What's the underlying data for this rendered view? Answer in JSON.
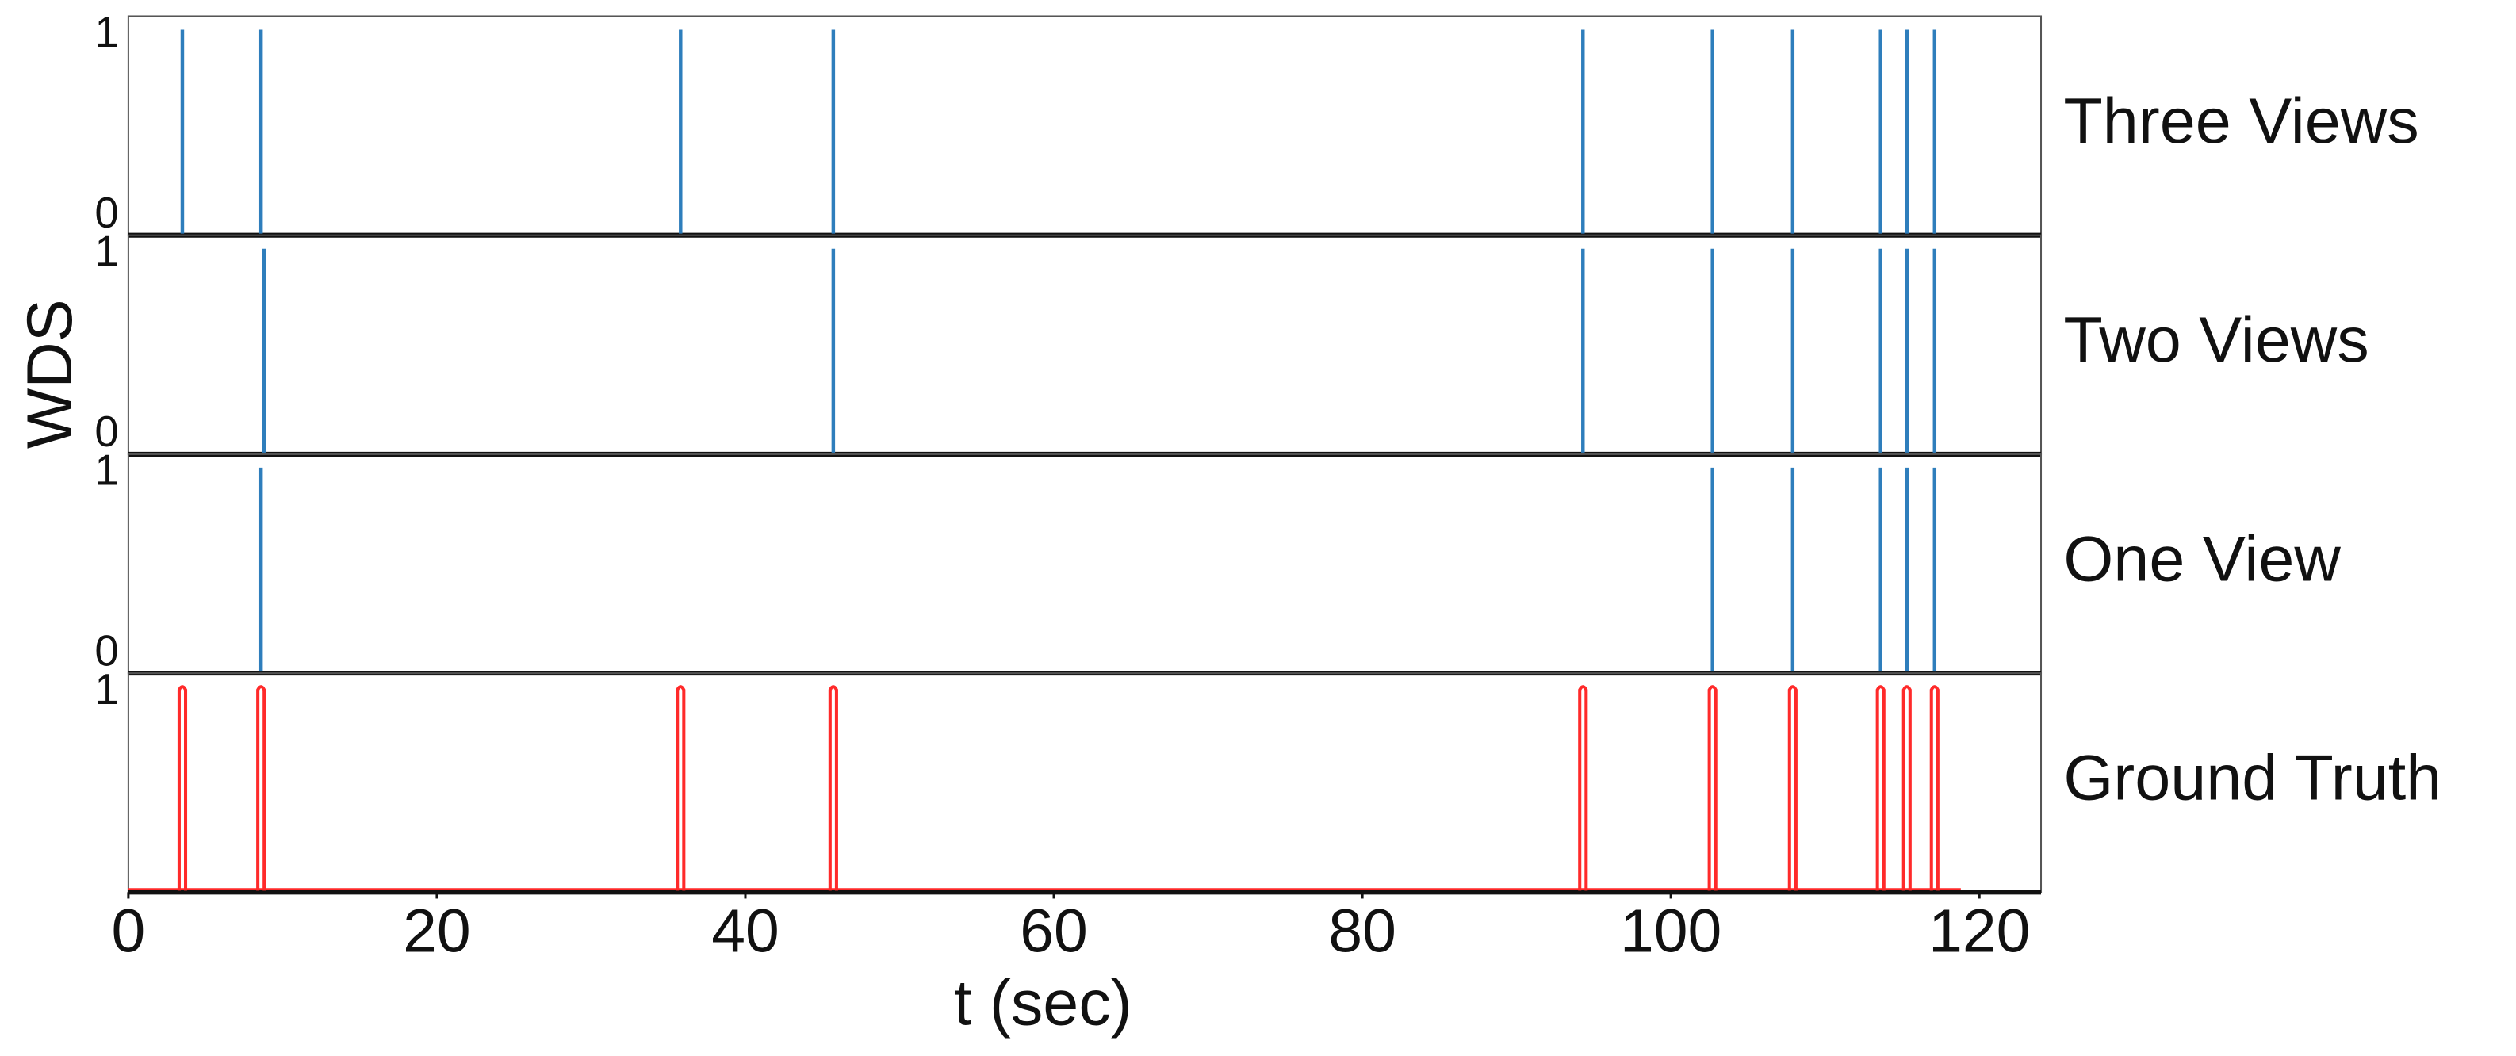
{
  "chart_data": [
    {
      "type": "spike",
      "title": "Three Views",
      "ylabel": "WDS",
      "color": "#2e7ebc",
      "x": [
        3.5,
        8.6,
        35.8,
        45.7,
        94.3,
        102.7,
        107.9,
        113.6,
        115.3,
        117.1
      ],
      "values": [
        1,
        1,
        1,
        1,
        1,
        1,
        1,
        1,
        1,
        1
      ],
      "xlim": [
        0,
        124
      ],
      "ylim": [
        0,
        1.05
      ],
      "yticks": [
        0,
        1
      ]
    },
    {
      "type": "spike",
      "title": "Two Views",
      "color": "#2e7ebc",
      "x": [
        8.8,
        45.7,
        94.3,
        102.7,
        107.9,
        113.6,
        115.3,
        117.1
      ],
      "values": [
        1,
        1,
        1,
        1,
        1,
        1,
        1,
        1
      ],
      "xlim": [
        0,
        124
      ],
      "ylim": [
        0,
        1.05
      ],
      "yticks": [
        0,
        1
      ]
    },
    {
      "type": "spike",
      "title": "One View",
      "color": "#2e7ebc",
      "x": [
        8.6,
        102.7,
        107.9,
        113.6,
        115.3,
        117.1
      ],
      "values": [
        1,
        1,
        1,
        1,
        1,
        1
      ],
      "xlim": [
        0,
        124
      ],
      "ylim": [
        0,
        1.05
      ],
      "yticks": [
        0,
        1
      ]
    },
    {
      "type": "pulse",
      "title": "Ground Truth",
      "color": "#ff2a2a",
      "xlabel": "t (sec)",
      "x": [
        3.5,
        8.6,
        35.8,
        45.7,
        94.3,
        102.7,
        107.9,
        113.6,
        115.3,
        117.1
      ],
      "values": [
        1,
        1,
        1,
        1,
        1,
        1,
        1,
        1,
        1,
        1
      ],
      "xlim": [
        0,
        124
      ],
      "ylim": [
        0,
        1.05
      ],
      "yticks": [
        1
      ],
      "xticks": [
        0,
        20,
        40,
        60,
        80,
        100,
        120
      ]
    }
  ]
}
